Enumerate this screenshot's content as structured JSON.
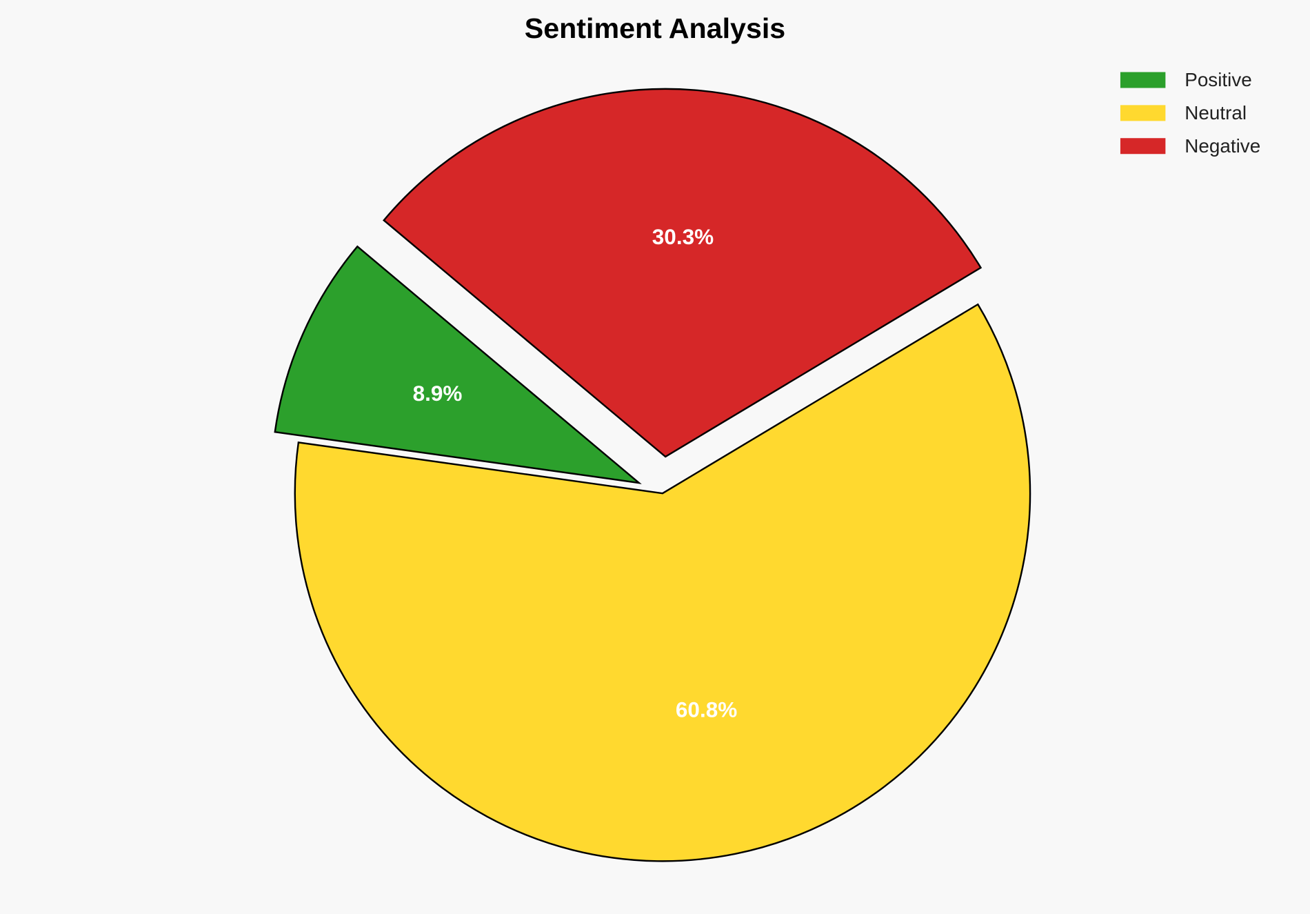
{
  "chart_data": {
    "type": "pie",
    "title": "Sentiment Analysis",
    "categories": [
      "Positive",
      "Neutral",
      "Negative"
    ],
    "values": [
      8.9,
      60.8,
      30.3
    ],
    "labels": [
      "8.9%",
      "60.8%",
      "30.3%"
    ],
    "colors": [
      "#2ca02c",
      "#ffd92f",
      "#d62728"
    ],
    "explode": [
      0.07,
      0,
      0.1
    ],
    "start_angle": 140,
    "direction": "counterclockwise",
    "legend_placement": "top-right",
    "background": "#f8f8f8"
  }
}
